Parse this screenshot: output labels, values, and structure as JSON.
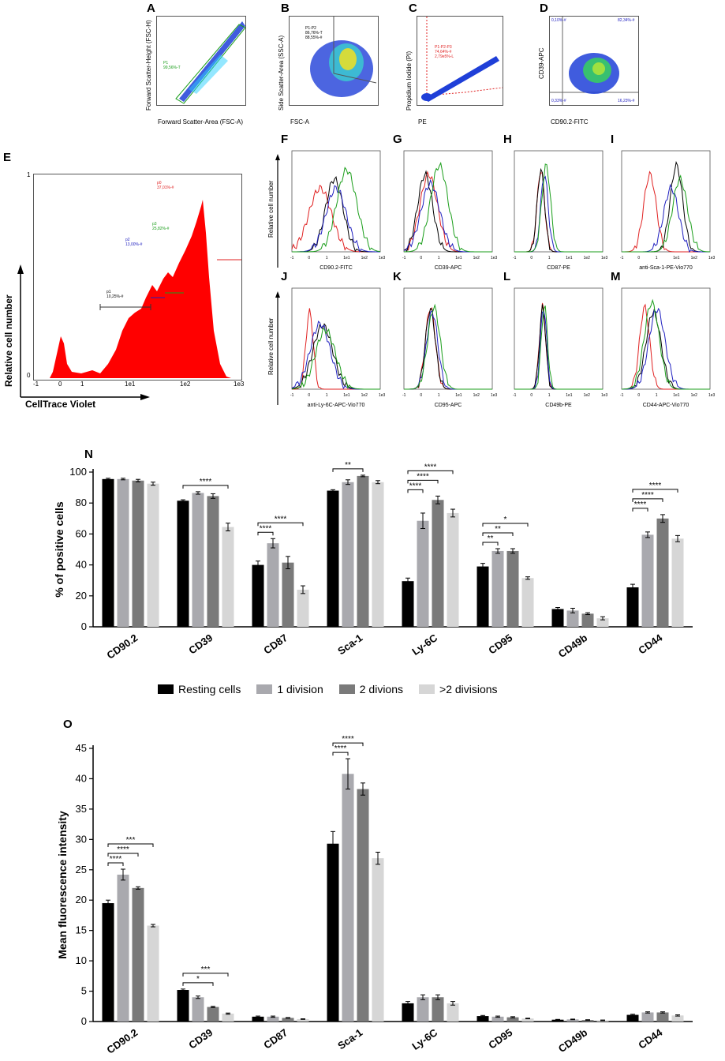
{
  "panels_top": {
    "A": {
      "letter": "A",
      "xlabel": "Forward Scatter-Area (FSC-A)",
      "ylabel": "Forward Scatter-Height (FSC-H)",
      "gate": [
        "P1",
        "99,56%-T"
      ],
      "gate_color": "#1a9e1a"
    },
    "B": {
      "letter": "B",
      "xlabel": "FSC-A",
      "ylabel": "Side Scatter-Area (SSC-A)",
      "gate": [
        "P1-P2",
        "86,76%-T",
        "88,55%-#"
      ]
    },
    "C": {
      "letter": "C",
      "xlabel": "PE",
      "ylabel": "Propidium Iodide (PI)",
      "gate": [
        "P1-P2-P3",
        "74,64%-#",
        "2,79e5%-L"
      ],
      "gate_color": "#e02020"
    },
    "D": {
      "letter": "D",
      "xlabel": "CD90.2-FITC",
      "ylabel": "CD39-APC",
      "quadrants": [
        "0,10%-#",
        "82,34%-#",
        "0,33%-#",
        "16,23%-#"
      ]
    }
  },
  "panel_E": {
    "letter": "E",
    "xlabel": "CellTrace Violet",
    "ylabel": "Relative cell number",
    "yticks": [
      "1",
      "0"
    ],
    "xticks": [
      "-1",
      "0",
      "1",
      "1e1",
      "1e2",
      "1e3"
    ],
    "gates": [
      {
        "name": "p0",
        "pct": "37,01%-#",
        "color": "#e02020"
      },
      {
        "name": "p3",
        "pct": "25,82%-#",
        "color": "#1a9e1a"
      },
      {
        "name": "p2",
        "pct": "13,00%-#",
        "color": "#2020c0"
      },
      {
        "name": "p1",
        "pct": "10,25%-#",
        "color": "#000000"
      }
    ]
  },
  "histograms": {
    "ylabel": "Relative cell number",
    "xticks": [
      "-1",
      "0",
      "1",
      "1e1",
      "1e2",
      "1e3"
    ],
    "series_colors": [
      "#e02020",
      "#000000",
      "#2020c0",
      "#1a9e1a"
    ],
    "panels": [
      {
        "letter": "F",
        "xlabel": "CD90.2-FITC"
      },
      {
        "letter": "G",
        "xlabel": "CD39-APC"
      },
      {
        "letter": "H",
        "xlabel": "CD87-PE"
      },
      {
        "letter": "I",
        "xlabel": "anti-Sca-1-PE-Vio770"
      },
      {
        "letter": "J",
        "xlabel": "anti-Ly-6C-APC-Vio770"
      },
      {
        "letter": "K",
        "xlabel": "CD95-APC"
      },
      {
        "letter": "L",
        "xlabel": "CD49b-PE"
      },
      {
        "letter": "M",
        "xlabel": "CD44-APC-Vio770"
      }
    ]
  },
  "legend": {
    "items": [
      {
        "label": "Resting cells",
        "color": "#000000"
      },
      {
        "label": "1 division",
        "color": "#a9a9ae"
      },
      {
        "label": "2 divions",
        "color": "#7a7a7a"
      },
      {
        "label": ">2 divisions",
        "color": "#d6d6d6"
      }
    ]
  },
  "chart_data": [
    {
      "id": "N",
      "letter": "N",
      "type": "bar",
      "title": "",
      "xlabel": "",
      "ylabel": "% of positive cells",
      "ylim": [
        0,
        100
      ],
      "yticks": [
        "0",
        "20",
        "40",
        "60",
        "80",
        "100"
      ],
      "categories": [
        "CD90.2",
        "CD39",
        "CD87",
        "Sca-1",
        "Ly-6C",
        "CD95",
        "CD49b",
        "CD44"
      ],
      "series": [
        {
          "name": "Resting cells",
          "color": "#000000",
          "values": [
            95.5,
            81.5,
            40,
            88,
            29.5,
            39,
            11.5,
            25.5
          ],
          "errors": [
            0.5,
            0.6,
            2.5,
            0.6,
            2.0,
            2.0,
            1.0,
            2.0
          ]
        },
        {
          "name": "1 division",
          "color": "#a9a9ae",
          "values": [
            95.5,
            86.5,
            54,
            93.5,
            68.5,
            49,
            10.5,
            59.5
          ],
          "errors": [
            0.5,
            0.8,
            3.0,
            1.5,
            5.0,
            1.5,
            1.5,
            1.8
          ]
        },
        {
          "name": "2 divions",
          "color": "#7a7a7a",
          "values": [
            94.5,
            84.5,
            41.5,
            97.5,
            82,
            49,
            8.5,
            70
          ],
          "errors": [
            0.8,
            1.5,
            4.0,
            0.5,
            2.5,
            1.5,
            0.6,
            2.5
          ]
        },
        {
          "name": ">2 divisions",
          "color": "#d6d6d6",
          "values": [
            92.5,
            64.5,
            24,
            93.5,
            73.5,
            31.5,
            5.5,
            57
          ],
          "errors": [
            1.0,
            2.5,
            2.5,
            1.0,
            2.5,
            0.8,
            1.0,
            2.0
          ]
        }
      ],
      "significance": [
        {
          "cat": 1,
          "from": 0,
          "to": 3,
          "label": "****"
        },
        {
          "cat": 2,
          "from": 0,
          "to": 1,
          "label": "****"
        },
        {
          "cat": 2,
          "from": 0,
          "to": 3,
          "label": "****"
        },
        {
          "cat": 3,
          "from": 0,
          "to": 2,
          "label": "**"
        },
        {
          "cat": 4,
          "from": 0,
          "to": 1,
          "label": "****"
        },
        {
          "cat": 4,
          "from": 0,
          "to": 2,
          "label": "****"
        },
        {
          "cat": 4,
          "from": 0,
          "to": 3,
          "label": "****"
        },
        {
          "cat": 5,
          "from": 0,
          "to": 1,
          "label": "**"
        },
        {
          "cat": 5,
          "from": 0,
          "to": 2,
          "label": "**"
        },
        {
          "cat": 5,
          "from": 0,
          "to": 3,
          "label": "*"
        },
        {
          "cat": 7,
          "from": 0,
          "to": 1,
          "label": "****"
        },
        {
          "cat": 7,
          "from": 0,
          "to": 2,
          "label": "****"
        },
        {
          "cat": 7,
          "from": 0,
          "to": 3,
          "label": "****"
        }
      ]
    },
    {
      "id": "O",
      "letter": "O",
      "type": "bar",
      "title": "",
      "xlabel": "",
      "ylabel": "Mean fluorescence intensity",
      "ylim": [
        0,
        45
      ],
      "yticks": [
        "0",
        "5",
        "10",
        "15",
        "20",
        "25",
        "30",
        "35",
        "40",
        "45"
      ],
      "categories": [
        "CD90.2",
        "CD39",
        "CD87",
        "Sca-1",
        "Ly-6C",
        "CD95",
        "CD49b",
        "CD44"
      ],
      "series": [
        {
          "name": "Resting cells",
          "color": "#000000",
          "values": [
            19.5,
            5.2,
            0.8,
            29.3,
            3.0,
            0.9,
            0.3,
            1.1
          ],
          "errors": [
            0.5,
            0.15,
            0.1,
            2.0,
            0.3,
            0.1,
            0.05,
            0.1
          ]
        },
        {
          "name": "1 division",
          "color": "#a9a9ae",
          "values": [
            24.2,
            4.0,
            0.8,
            40.8,
            4.0,
            0.8,
            0.35,
            1.5
          ],
          "errors": [
            0.9,
            0.2,
            0.1,
            2.5,
            0.4,
            0.1,
            0.05,
            0.1
          ]
        },
        {
          "name": "2 divions",
          "color": "#7a7a7a",
          "values": [
            22.0,
            2.4,
            0.6,
            38.3,
            4.0,
            0.7,
            0.25,
            1.5
          ],
          "errors": [
            0.2,
            0.1,
            0.05,
            1.0,
            0.4,
            0.1,
            0.05,
            0.1
          ]
        },
        {
          "name": ">2 divisions",
          "color": "#d6d6d6",
          "values": [
            15.8,
            1.3,
            0.4,
            26.9,
            3.0,
            0.5,
            0.2,
            1.0
          ],
          "errors": [
            0.2,
            0.1,
            0.05,
            1.0,
            0.3,
            0.05,
            0.05,
            0.1
          ]
        }
      ],
      "significance": [
        {
          "cat": 0,
          "from": 0,
          "to": 1,
          "label": "****"
        },
        {
          "cat": 0,
          "from": 0,
          "to": 2,
          "label": "****"
        },
        {
          "cat": 0,
          "from": 0,
          "to": 3,
          "label": "***"
        },
        {
          "cat": 1,
          "from": 0,
          "to": 2,
          "label": "*"
        },
        {
          "cat": 1,
          "from": 0,
          "to": 3,
          "label": "***"
        },
        {
          "cat": 3,
          "from": 0,
          "to": 1,
          "label": "****"
        },
        {
          "cat": 3,
          "from": 0,
          "to": 2,
          "label": "****"
        }
      ]
    }
  ]
}
